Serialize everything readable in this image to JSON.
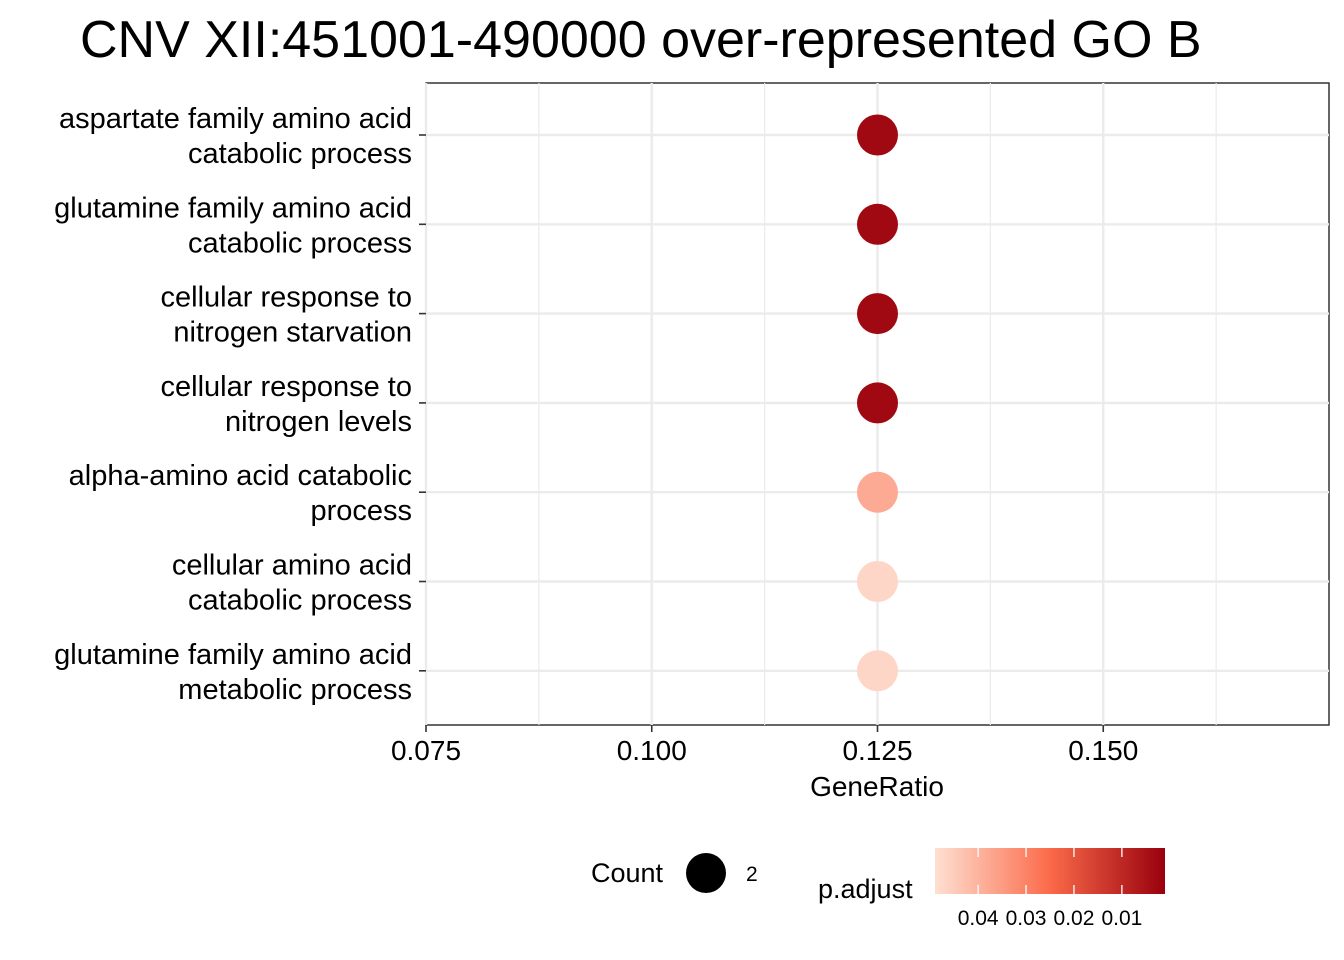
{
  "chart_data": {
    "type": "scatter",
    "title": "CNV XII:451001-490000 over-represented GO B",
    "xlabel": "GeneRatio",
    "ylabel": "",
    "xlim": [
      0.075,
      0.175
    ],
    "x_ticks": [
      "0.075",
      "0.100",
      "0.125",
      "0.150"
    ],
    "x_tick_values": [
      0.075,
      0.1,
      0.125,
      0.15
    ],
    "grid": true,
    "categories": [
      [
        "aspartate family amino acid",
        "catabolic process"
      ],
      [
        "glutamine family amino acid",
        "catabolic process"
      ],
      [
        "cellular response to",
        "nitrogen starvation"
      ],
      [
        "cellular response to",
        "nitrogen levels"
      ],
      [
        "alpha-amino acid catabolic",
        "process"
      ],
      [
        "cellular amino acid",
        "catabolic process"
      ],
      [
        "glutamine family amino acid",
        "metabolic process"
      ]
    ],
    "points": [
      {
        "gene_ratio": 0.125,
        "count": 2,
        "p_adjust": 0.003
      },
      {
        "gene_ratio": 0.125,
        "count": 2,
        "p_adjust": 0.003
      },
      {
        "gene_ratio": 0.125,
        "count": 2,
        "p_adjust": 0.003
      },
      {
        "gene_ratio": 0.125,
        "count": 2,
        "p_adjust": 0.003
      },
      {
        "gene_ratio": 0.125,
        "count": 2,
        "p_adjust": 0.038
      },
      {
        "gene_ratio": 0.125,
        "count": 2,
        "p_adjust": 0.047
      },
      {
        "gene_ratio": 0.125,
        "count": 2,
        "p_adjust": 0.047
      }
    ],
    "legend": {
      "position": "bottom",
      "size_title": "Count",
      "size_value": "2",
      "color_title": "p.adjust",
      "color_ticks": [
        "0.04",
        "0.03",
        "0.02",
        "0.01"
      ],
      "color_tick_values": [
        0.04,
        0.03,
        0.02,
        0.01
      ],
      "color_range": [
        0.049,
        0.001
      ],
      "color_low": "#fee0d2",
      "color_mid": "#fb6a4a",
      "color_high": "#99000d"
    },
    "colors": {
      "grid": "#ebebeb",
      "axis": "#333333"
    }
  }
}
